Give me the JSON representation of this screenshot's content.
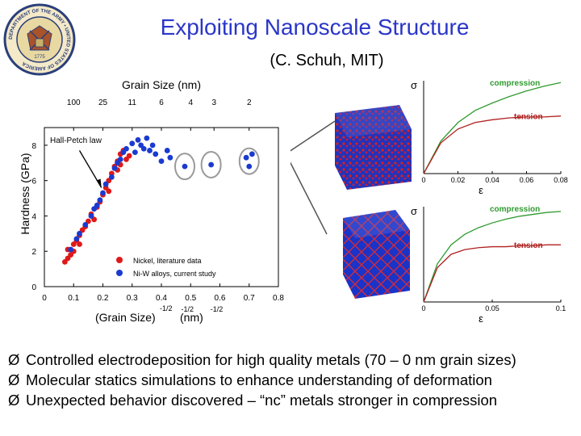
{
  "slide": {
    "title": "Exploiting Nanoscale Structure",
    "subtitle": "(C. Schuh, MIT)",
    "bullet_marker": "Ø",
    "bullets": [
      "Controlled electrodeposition for high quality metals (70 – 0 nm grain sizes)",
      "Molecular statics simulations to enhance understanding of deformation",
      "Unexpected behavior discovered – “nc” metals stronger in compression"
    ],
    "seal": {
      "ring_text": "DEPARTMENT OF THE ARMY • UNITED STATES OF AMERICA",
      "year": "1775"
    }
  },
  "chart_data": [
    {
      "type": "scatter",
      "title": "",
      "top_axis_label": "Grain Size (nm)",
      "top_ticks": [
        "100",
        "25",
        "11",
        "6",
        "4",
        "3",
        "2"
      ],
      "top_tick_positions": [
        0.1,
        0.2,
        0.3,
        0.4,
        0.5,
        0.58,
        0.7
      ],
      "xlabel_main": "(Grain Size)",
      "xlabel_exp": "-1/2",
      "xlabel_unit": "(nm)",
      "ylabel": "Hardness (GPa)",
      "xlim": [
        0,
        0.8
      ],
      "ylim": [
        0,
        9
      ],
      "xticks": [
        "0",
        "0.1",
        "0.2",
        "0.3",
        "0.4",
        "0.5",
        "0.6",
        "0.7",
        "0.8"
      ],
      "xtick_exps": [
        "",
        "",
        "",
        "",
        "",
        "-1/2",
        "-1/2",
        "",
        ""
      ],
      "yticks": [
        "0",
        "2",
        "4",
        "6",
        "8"
      ],
      "annotation": "Hall-Petch law",
      "legend": {
        "placement": "bottom-right",
        "entries": [
          "Nickel, literature data",
          "Ni-W alloys, current study"
        ]
      },
      "colors": {
        "nickel": "#e01818",
        "niw": "#1a3ad0",
        "circle": "#9a9a9a",
        "hall_petch": "#000000"
      },
      "hall_petch_line": [
        [
          0.05,
          1.8
        ],
        [
          0.37,
          9.2
        ]
      ],
      "series": [
        {
          "name": "Nickel, literature data",
          "points": [
            [
              0.07,
              1.4
            ],
            [
              0.08,
              1.6
            ],
            [
              0.09,
              1.8
            ],
            [
              0.08,
              2.1
            ],
            [
              0.1,
              2.4
            ],
            [
              0.11,
              2.6
            ],
            [
              0.12,
              2.9
            ],
            [
              0.13,
              3.2
            ],
            [
              0.14,
              3.4
            ],
            [
              0.15,
              3.7
            ],
            [
              0.17,
              3.8
            ],
            [
              0.16,
              4.1
            ],
            [
              0.18,
              4.5
            ],
            [
              0.19,
              4.8
            ],
            [
              0.2,
              5.2
            ],
            [
              0.21,
              5.6
            ],
            [
              0.22,
              6.0
            ],
            [
              0.23,
              6.4
            ],
            [
              0.24,
              6.8
            ],
            [
              0.25,
              7.1
            ],
            [
              0.26,
              7.5
            ],
            [
              0.27,
              7.7
            ],
            [
              0.28,
              7.2
            ],
            [
              0.25,
              6.6
            ],
            [
              0.22,
              5.4
            ],
            [
              0.26,
              6.9
            ],
            [
              0.29,
              7.4
            ],
            [
              0.12,
              2.4
            ],
            [
              0.1,
              2.0
            ]
          ]
        },
        {
          "name": "Ni-W alloys, current study",
          "points": [
            [
              0.09,
              2.1
            ],
            [
              0.11,
              2.7
            ],
            [
              0.12,
              3.0
            ],
            [
              0.14,
              3.5
            ],
            [
              0.16,
              4.0
            ],
            [
              0.17,
              4.4
            ],
            [
              0.19,
              4.9
            ],
            [
              0.2,
              5.3
            ],
            [
              0.21,
              5.8
            ],
            [
              0.23,
              6.2
            ],
            [
              0.24,
              6.7
            ],
            [
              0.26,
              7.2
            ],
            [
              0.27,
              7.6
            ],
            [
              0.28,
              7.8
            ],
            [
              0.3,
              8.1
            ],
            [
              0.31,
              7.6
            ],
            [
              0.32,
              8.3
            ],
            [
              0.33,
              8.0
            ],
            [
              0.35,
              8.4
            ],
            [
              0.36,
              7.7
            ],
            [
              0.37,
              8.0
            ],
            [
              0.38,
              7.5
            ],
            [
              0.34,
              7.8
            ],
            [
              0.4,
              7.1
            ],
            [
              0.42,
              7.7
            ],
            [
              0.43,
              7.3
            ],
            [
              0.48,
              6.8
            ],
            [
              0.57,
              6.9
            ],
            [
              0.69,
              7.3
            ],
            [
              0.7,
              6.8
            ],
            [
              0.71,
              7.5
            ],
            [
              0.25,
              7.0
            ],
            [
              0.18,
              4.6
            ]
          ]
        }
      ],
      "circled_points": [
        [
          0.48,
          6.8
        ],
        [
          0.57,
          6.9
        ],
        [
          0.7,
          7.1
        ]
      ]
    },
    {
      "type": "line",
      "title": "",
      "ylabel": "σ",
      "xlabel": "ε",
      "xticks": [
        "0",
        "0.02",
        "0.04",
        "0.06",
        "0.08"
      ],
      "xlim": [
        0,
        0.08
      ],
      "series": [
        {
          "name": "compression",
          "color": "#2f9a2f",
          "points": [
            [
              0,
              0
            ],
            [
              0.01,
              0.35
            ],
            [
              0.02,
              0.55
            ],
            [
              0.03,
              0.68
            ],
            [
              0.04,
              0.76
            ],
            [
              0.05,
              0.83
            ],
            [
              0.06,
              0.89
            ],
            [
              0.07,
              0.94
            ],
            [
              0.08,
              0.98
            ]
          ]
        },
        {
          "name": "tension",
          "color": "#b02020",
          "points": [
            [
              0,
              0
            ],
            [
              0.01,
              0.33
            ],
            [
              0.02,
              0.48
            ],
            [
              0.03,
              0.55
            ],
            [
              0.04,
              0.58
            ],
            [
              0.05,
              0.6
            ],
            [
              0.06,
              0.61
            ],
            [
              0.07,
              0.61
            ],
            [
              0.08,
              0.62
            ]
          ]
        }
      ]
    },
    {
      "type": "line",
      "title": "",
      "ylabel": "σ",
      "xlabel": "ε",
      "xticks": [
        "0",
        "0.05",
        "0.1"
      ],
      "xlim": [
        0,
        0.1
      ],
      "series": [
        {
          "name": "compression",
          "color": "#2f9a2f",
          "points": [
            [
              0,
              0
            ],
            [
              0.01,
              0.4
            ],
            [
              0.02,
              0.6
            ],
            [
              0.03,
              0.71
            ],
            [
              0.04,
              0.78
            ],
            [
              0.05,
              0.83
            ],
            [
              0.06,
              0.87
            ],
            [
              0.07,
              0.9
            ],
            [
              0.08,
              0.92
            ],
            [
              0.09,
              0.94
            ],
            [
              0.1,
              0.95
            ]
          ]
        },
        {
          "name": "tension",
          "color": "#b02020",
          "points": [
            [
              0,
              0
            ],
            [
              0.01,
              0.36
            ],
            [
              0.02,
              0.5
            ],
            [
              0.03,
              0.55
            ],
            [
              0.04,
              0.57
            ],
            [
              0.05,
              0.58
            ],
            [
              0.06,
              0.58
            ],
            [
              0.07,
              0.59
            ],
            [
              0.08,
              0.59
            ],
            [
              0.09,
              0.6
            ],
            [
              0.1,
              0.6
            ]
          ]
        }
      ]
    }
  ]
}
